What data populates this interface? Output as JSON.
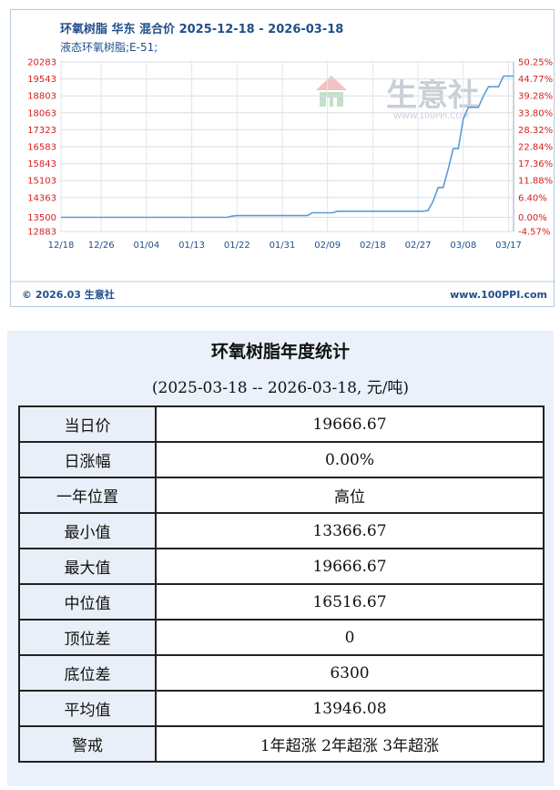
{
  "chart": {
    "title": "环氧树脂 华东 混合价 2025-12-18 - 2026-03-18",
    "subtitle": "液态环氧树脂;E-51;",
    "watermark_text": "生意社",
    "watermark_url": "WWW.100PPI.COM",
    "footer_left": "© 2026.03 生意社",
    "footer_right": "www.100PPI.com",
    "line_color": "#5b9bd5",
    "left_tick_color": "#d42020",
    "right_tick_color": "#d42020"
  },
  "chart_data": {
    "type": "line",
    "y_ticks_left": [
      "20283",
      "19543",
      "18803",
      "18063",
      "17323",
      "16583",
      "15843",
      "15103",
      "14363",
      "13500",
      "12883"
    ],
    "y_ticks_right": [
      "50.25%",
      "44.77%",
      "39.28%",
      "33.80%",
      "28.32%",
      "22.84%",
      "17.36%",
      "11.88%",
      "6.40%",
      "0.00%",
      "-4.57%"
    ],
    "x_ticks": [
      "12/18",
      "12/26",
      "01/04",
      "01/13",
      "01/22",
      "01/31",
      "02/09",
      "02/18",
      "02/27",
      "03/08",
      "03/17"
    ],
    "ylim": [
      12883,
      20283
    ],
    "grid": true,
    "series": [
      {
        "points": [
          [
            "12/18",
            13500
          ],
          [
            "01/20",
            13500
          ],
          [
            "01/21",
            13550
          ],
          [
            "01/22",
            13575
          ],
          [
            "02/05",
            13575
          ],
          [
            "02/06",
            13700
          ],
          [
            "02/10",
            13700
          ],
          [
            "02/11",
            13766.67
          ],
          [
            "02/28",
            13766.67
          ],
          [
            "02/29",
            13800
          ],
          [
            "03/02",
            14200
          ],
          [
            "03/03",
            14800
          ],
          [
            "03/04",
            14800
          ],
          [
            "03/05",
            15600
          ],
          [
            "03/06",
            16500
          ],
          [
            "03/07",
            16500
          ],
          [
            "03/08",
            17800
          ],
          [
            "03/09",
            18300
          ],
          [
            "03/11",
            18300
          ],
          [
            "03/12",
            18800
          ],
          [
            "03/13",
            19200
          ],
          [
            "03/15",
            19200
          ],
          [
            "03/16",
            19666.67
          ],
          [
            "03/18",
            19666.67
          ]
        ]
      }
    ]
  },
  "stats": {
    "title": "环氧树脂年度统计",
    "subtitle": "(2025-03-18 -- 2026-03-18, 元/吨)",
    "rows": [
      {
        "label": "当日价",
        "value": "19666.67"
      },
      {
        "label": "日涨幅",
        "value": "0.00%"
      },
      {
        "label": "一年位置",
        "value": "高位"
      },
      {
        "label": "最小值",
        "value": "13366.67"
      },
      {
        "label": "最大值",
        "value": "19666.67"
      },
      {
        "label": "中位值",
        "value": "16516.67"
      },
      {
        "label": "顶位差",
        "value": "0"
      },
      {
        "label": "底位差",
        "value": "6300"
      },
      {
        "label": "平均值",
        "value": "13946.08"
      },
      {
        "label": "警戒",
        "value": "1年超涨 2年超涨 3年超涨"
      }
    ]
  }
}
